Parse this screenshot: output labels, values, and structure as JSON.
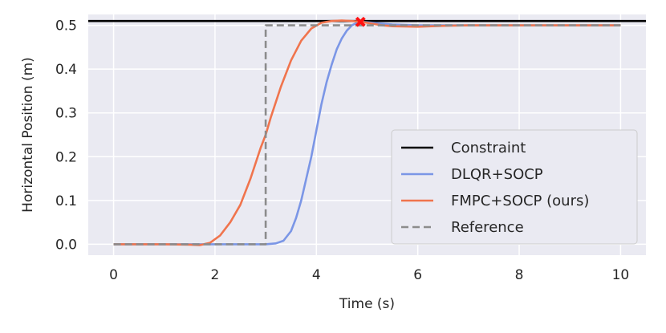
{
  "chart_data": {
    "type": "line",
    "xlabel": "Time (s)",
    "ylabel": "Horizontal Position (m)",
    "xlim": [
      -0.5,
      10.5
    ],
    "ylim": [
      -0.025,
      0.525
    ],
    "xticks": [
      0,
      2,
      4,
      6,
      8,
      10
    ],
    "xtick_labels": [
      "0",
      "2",
      "4",
      "6",
      "8",
      "10"
    ],
    "yticks": [
      0.0,
      0.1,
      0.2,
      0.3,
      0.4,
      0.5
    ],
    "ytick_labels": [
      "0.0",
      "0.1",
      "0.2",
      "0.3",
      "0.4",
      "0.5"
    ],
    "grid": true,
    "legend_position": "lower-right",
    "background": "#eaeaf2",
    "constraint": {
      "name": "Constraint",
      "value": 0.51,
      "color": "#000000"
    },
    "series": [
      {
        "name": "DLQR+SOCP",
        "color": "#7b96e6",
        "x": [
          0,
          1,
          2,
          2.5,
          3.0,
          3.2,
          3.35,
          3.5,
          3.6,
          3.7,
          3.8,
          3.9,
          4.0,
          4.1,
          4.2,
          4.3,
          4.4,
          4.5,
          4.6,
          4.7,
          4.8,
          4.9,
          5.0,
          5.5,
          6,
          7,
          8,
          10
        ],
        "y": [
          0,
          0,
          0,
          0,
          0,
          0.002,
          0.008,
          0.03,
          0.06,
          0.1,
          0.15,
          0.2,
          0.26,
          0.32,
          0.37,
          0.41,
          0.445,
          0.47,
          0.488,
          0.5,
          0.506,
          0.508,
          0.507,
          0.502,
          0.5,
          0.5,
          0.5,
          0.5
        ]
      },
      {
        "name": "FMPC+SOCP (ours)",
        "color": "#f0744d",
        "x": [
          0,
          1.0,
          1.5,
          1.7,
          1.9,
          2.1,
          2.3,
          2.5,
          2.7,
          2.9,
          3.0,
          3.1,
          3.3,
          3.5,
          3.7,
          3.9,
          4.1,
          4.3,
          4.5,
          4.7,
          4.9,
          5.1,
          5.3,
          5.5,
          6.0,
          6.5,
          7.0,
          8.0,
          10.0
        ],
        "y": [
          0,
          0,
          -0.001,
          -0.002,
          0.003,
          0.02,
          0.05,
          0.09,
          0.15,
          0.22,
          0.25,
          0.29,
          0.36,
          0.42,
          0.465,
          0.493,
          0.506,
          0.51,
          0.511,
          0.51,
          0.508,
          0.504,
          0.5,
          0.498,
          0.497,
          0.499,
          0.5,
          0.5,
          0.5
        ]
      },
      {
        "name": "Reference",
        "color": "#8c8c8c",
        "dashed": true,
        "x": [
          0,
          3.0,
          3.0,
          10
        ],
        "y": [
          0,
          0,
          0.5,
          0.5
        ]
      }
    ],
    "markers": [
      {
        "x": 4.87,
        "y": 0.508,
        "color": "#ff1010",
        "shape": "x"
      }
    ]
  }
}
